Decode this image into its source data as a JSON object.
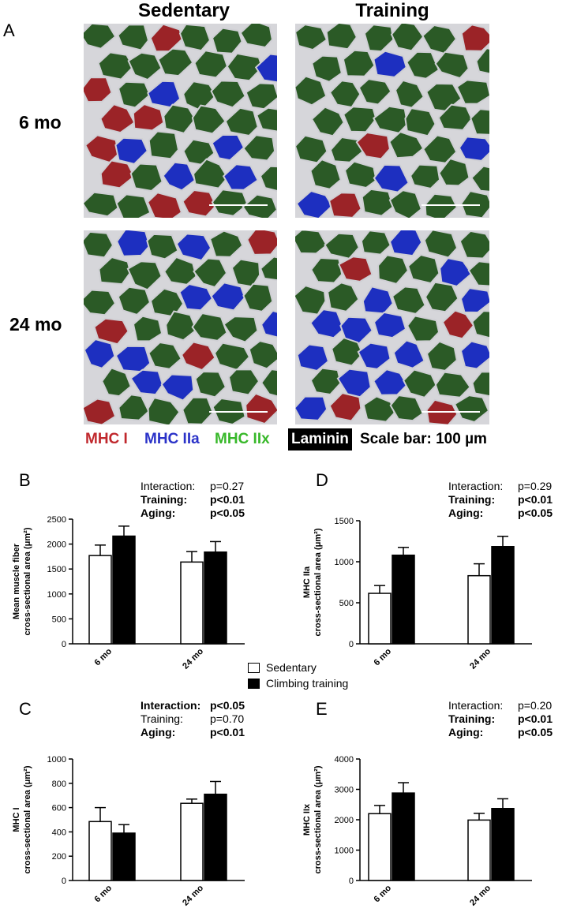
{
  "figure": {
    "panel_a": {
      "letter": "A",
      "col_headers": [
        "Sedentary",
        "Training"
      ],
      "row_labels": [
        "6 mo",
        "24 mo"
      ],
      "stain_legend": {
        "mhc1": {
          "label": "MHC I",
          "color": "#c0282d"
        },
        "mhc2a": {
          "label": "MHC IIa",
          "color": "#2a32c8"
        },
        "mhc2x": {
          "label": "MHC IIx",
          "color": "#38b82a"
        },
        "laminin": {
          "label": "Laminin",
          "color": "#000000"
        },
        "scale": "Scale bar: 100 µm"
      }
    },
    "series_legend": {
      "sedentary": "Sedentary",
      "training": "Climbing training"
    },
    "colors": {
      "sedentary_fill": "#ffffff",
      "training_fill": "#000000",
      "fiber_green": "#2b5a26",
      "fiber_blue": "#1d2fc0",
      "fiber_red": "#9b2327",
      "boundary": "#cfcfd4"
    }
  },
  "chart_data": [
    {
      "panel": "B",
      "type": "bar",
      "categories": [
        "6 mo",
        "24 mo"
      ],
      "series": [
        {
          "name": "Sedentary",
          "values": [
            1770,
            1640
          ],
          "errors": [
            210,
            210
          ]
        },
        {
          "name": "Climbing training",
          "values": [
            2160,
            1840
          ],
          "errors": [
            200,
            210
          ]
        }
      ],
      "ylabel_line1": "Mean muscle fiber",
      "ylabel_line2": "cross-sectional area (μm²)",
      "ylim": [
        0,
        2500
      ],
      "yticks": [
        "0",
        "500",
        "1000",
        "1500",
        "2000",
        "2500"
      ],
      "stats": [
        {
          "label": "Interaction:",
          "value": "p=0.27",
          "bold": false
        },
        {
          "label": "Training:",
          "value": "p<0.01",
          "bold": true
        },
        {
          "label": "Aging:",
          "value": "p<0.05",
          "bold": true
        }
      ]
    },
    {
      "panel": "C",
      "type": "bar",
      "categories": [
        "6 mo",
        "24 mo"
      ],
      "series": [
        {
          "name": "Sedentary",
          "values": [
            485,
            635
          ],
          "errors": [
            115,
            35
          ]
        },
        {
          "name": "Climbing training",
          "values": [
            390,
            710
          ],
          "errors": [
            70,
            105
          ]
        }
      ],
      "ylabel_line1": "MHC I",
      "ylabel_line2": "cross-sectional area (μm²)",
      "ylim": [
        0,
        1000
      ],
      "yticks": [
        "0",
        "200",
        "400",
        "600",
        "800",
        "1000"
      ],
      "stats": [
        {
          "label": "Interaction:",
          "value": "p<0.05",
          "bold": true
        },
        {
          "label": "Training:",
          "value": "p=0.70",
          "bold": false
        },
        {
          "label": "Aging:",
          "value": "p<0.01",
          "bold": true
        }
      ]
    },
    {
      "panel": "D",
      "type": "bar",
      "categories": [
        "6 mo",
        "24 mo"
      ],
      "series": [
        {
          "name": "Sedentary",
          "values": [
            615,
            830
          ],
          "errors": [
            95,
            145
          ]
        },
        {
          "name": "Climbing training",
          "values": [
            1080,
            1185
          ],
          "errors": [
            95,
            125
          ]
        }
      ],
      "ylabel_line1": "MHC IIa",
      "ylabel_line2": "cross-sectional area (μm²)",
      "ylim": [
        0,
        1500
      ],
      "yticks": [
        "0",
        "500",
        "1000",
        "1500"
      ],
      "stats": [
        {
          "label": "Interaction:",
          "value": "p=0.29",
          "bold": false
        },
        {
          "label": "Training:",
          "value": "p<0.01",
          "bold": true
        },
        {
          "label": "Aging:",
          "value": "p<0.05",
          "bold": true
        }
      ]
    },
    {
      "panel": "E",
      "type": "bar",
      "categories": [
        "6 mo",
        "24 mo"
      ],
      "series": [
        {
          "name": "Sedentary",
          "values": [
            2200,
            1990
          ],
          "errors": [
            270,
            220
          ]
        },
        {
          "name": "Climbing training",
          "values": [
            2880,
            2370
          ],
          "errors": [
            340,
            320
          ]
        }
      ],
      "ylabel_line1": "MHC IIx",
      "ylabel_line2": "cross-sectional area (μm²)",
      "ylim": [
        0,
        4000
      ],
      "yticks": [
        "0",
        "1000",
        "2000",
        "3000",
        "4000"
      ],
      "stats": [
        {
          "label": "Interaction:",
          "value": "p=0.20",
          "bold": false
        },
        {
          "label": "Training:",
          "value": "p<0.01",
          "bold": true
        },
        {
          "label": "Aging:",
          "value": "p<0.05",
          "bold": true
        }
      ]
    }
  ]
}
